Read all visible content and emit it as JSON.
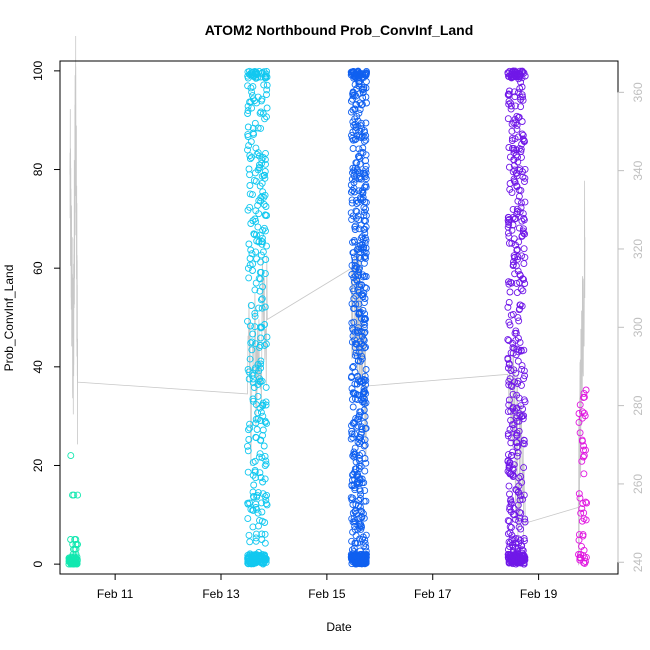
{
  "chart_data": {
    "type": "scatter",
    "title": "ATOM2 Northbound Prob_ConvInf_Land",
    "xlabel": "Date",
    "ylabel": "Prob_ConvInf_Land",
    "x_axis": {
      "type": "date",
      "range": [
        "2015-02-09T23:00",
        "2015-02-20T12:00"
      ],
      "ticks": [
        {
          "value": "2015-02-11",
          "label": "Feb 11"
        },
        {
          "value": "2015-02-13",
          "label": "Feb 13"
        },
        {
          "value": "2015-02-15",
          "label": "Feb 15"
        },
        {
          "value": "2015-02-17",
          "label": "Feb 17"
        },
        {
          "value": "2015-02-19",
          "label": "Feb 19"
        }
      ]
    },
    "y_axis": {
      "range": [
        -2,
        102
      ],
      "ticks": [
        0,
        20,
        40,
        60,
        80,
        100
      ]
    },
    "secondary_y_axis": {
      "range": [
        237,
        368
      ],
      "ticks": [
        240,
        260,
        280,
        300,
        320,
        340,
        360
      ],
      "color": "#bfbfbf"
    },
    "grid": false,
    "legend": "none",
    "line_color": "#c8c8c8",
    "point_colors": [
      "#12e8b0",
      "#12c8f0",
      "#1060f0",
      "#7018e8",
      "#e018e0"
    ],
    "clusters": [
      {
        "start": "2015-02-10T03:00",
        "end": "2015-02-10T07:00",
        "color": "#12e8b0",
        "count": 70,
        "approx_values": [
          0,
          0,
          1,
          2,
          3,
          4,
          5,
          14,
          22
        ]
      },
      {
        "start": "2015-02-13T12:00",
        "end": "2015-02-13T21:00",
        "color": "#12c8f0",
        "count": 400,
        "approx_values_range": [
          0,
          100
        ]
      },
      {
        "start": "2015-02-15T11:00",
        "end": "2015-02-15T18:00",
        "color": "#1060f0",
        "count": 650,
        "approx_values_range": [
          0,
          100
        ]
      },
      {
        "start": "2015-02-18T10:00",
        "end": "2015-02-18T18:00",
        "color": "#7018e8",
        "count": 500,
        "approx_values_range": [
          0,
          100
        ]
      },
      {
        "start": "2015-02-19T18:00",
        "end": "2015-02-19T22:00",
        "color": "#e018e0",
        "count": 50,
        "approx_values_range": [
          0,
          36
        ]
      }
    ],
    "secondary_series": [
      {
        "x": "2015-02-10T03:30",
        "y": 339
      },
      {
        "x": "2015-02-10T05:00",
        "y": 288
      },
      {
        "x": "2015-02-10T06:00",
        "y": 362
      },
      {
        "x": "2015-02-10T07:00",
        "y": 286
      },
      {
        "x": "2015-02-13T12:00",
        "y": 283
      },
      {
        "x": "2015-02-13T21:00",
        "y": 302
      },
      {
        "x": "2015-02-15T11:00",
        "y": 315
      },
      {
        "x": "2015-02-15T18:00",
        "y": 285
      },
      {
        "x": "2015-02-18T10:00",
        "y": 288
      },
      {
        "x": "2015-02-18T18:00",
        "y": 250
      },
      {
        "x": "2015-02-19T18:00",
        "y": 254
      },
      {
        "x": "2015-02-19T21:00",
        "y": 323
      }
    ]
  }
}
